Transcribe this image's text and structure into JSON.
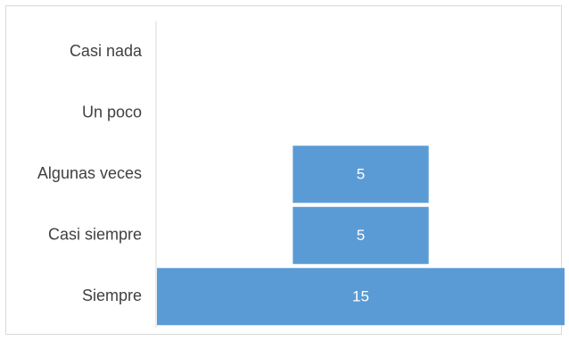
{
  "chart_data": {
    "type": "bar",
    "orientation": "horizontal-centered",
    "categories": [
      "Casi nada",
      "Un poco",
      "Algunas veces",
      "Casi siempre",
      "Siempre"
    ],
    "values": [
      0,
      0,
      5,
      5,
      15
    ],
    "data_labels": [
      "",
      "",
      "5",
      "5",
      "15"
    ],
    "colors": {
      "bar": "#5b9bd5",
      "axis": "#d9d9d9",
      "label": "#404040",
      "value_label": "#ffffff"
    }
  }
}
